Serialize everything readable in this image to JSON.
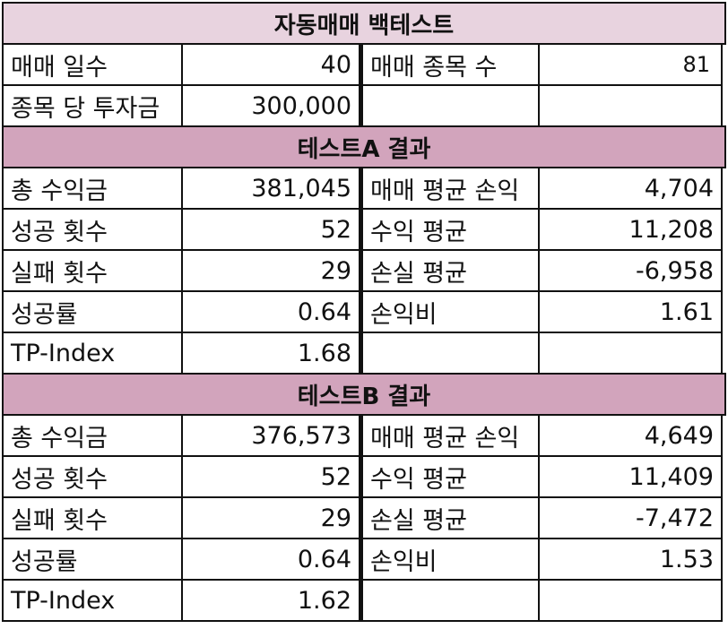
{
  "title": "자동매매 백테스트",
  "settings": {
    "trade_days_label": "매매 일수",
    "trade_days_value": "40",
    "stock_count_label": "매매 종목 수",
    "stock_count_value": "81",
    "invest_per_stock_label": "종목 당 투자금",
    "invest_per_stock_value": "300,000",
    "empty_label": "",
    "empty_value": ""
  },
  "test_a": {
    "title": "테스트A 결과",
    "rows": [
      {
        "label": "총 수익금",
        "value": "381,045",
        "label2": "매매 평균 손익",
        "value2": "4,704"
      },
      {
        "label": "성공 횟수",
        "value": "52",
        "label2": "수익 평균",
        "value2": "11,208"
      },
      {
        "label": "실패 횟수",
        "value": "29",
        "label2": "손실 평균",
        "value2": "-6,958"
      },
      {
        "label": "성공률",
        "value": "0.64",
        "label2": "손익비",
        "value2": "1.61"
      },
      {
        "label": "TP-Index",
        "value": "1.68",
        "label2": "",
        "value2": ""
      }
    ]
  },
  "test_b": {
    "title": "테스트B 결과",
    "rows": [
      {
        "label": "총 수익금",
        "value": "376,573",
        "label2": "매매 평균 손익",
        "value2": "4,649"
      },
      {
        "label": "성공 횟수",
        "value": "52",
        "label2": "수익 평균",
        "value2": "11,409"
      },
      {
        "label": "실패 횟수",
        "value": "29",
        "label2": "손실 평균",
        "value2": "-7,472"
      },
      {
        "label": "성공률",
        "value": "0.64",
        "label2": "손익비",
        "value2": "1.53"
      },
      {
        "label": "TP-Index",
        "value": "1.62",
        "label2": "",
        "value2": ""
      }
    ]
  },
  "colors": {
    "title_bg": "#e8d3df",
    "section_bg": "#d2a4bc",
    "border": "#111111"
  }
}
